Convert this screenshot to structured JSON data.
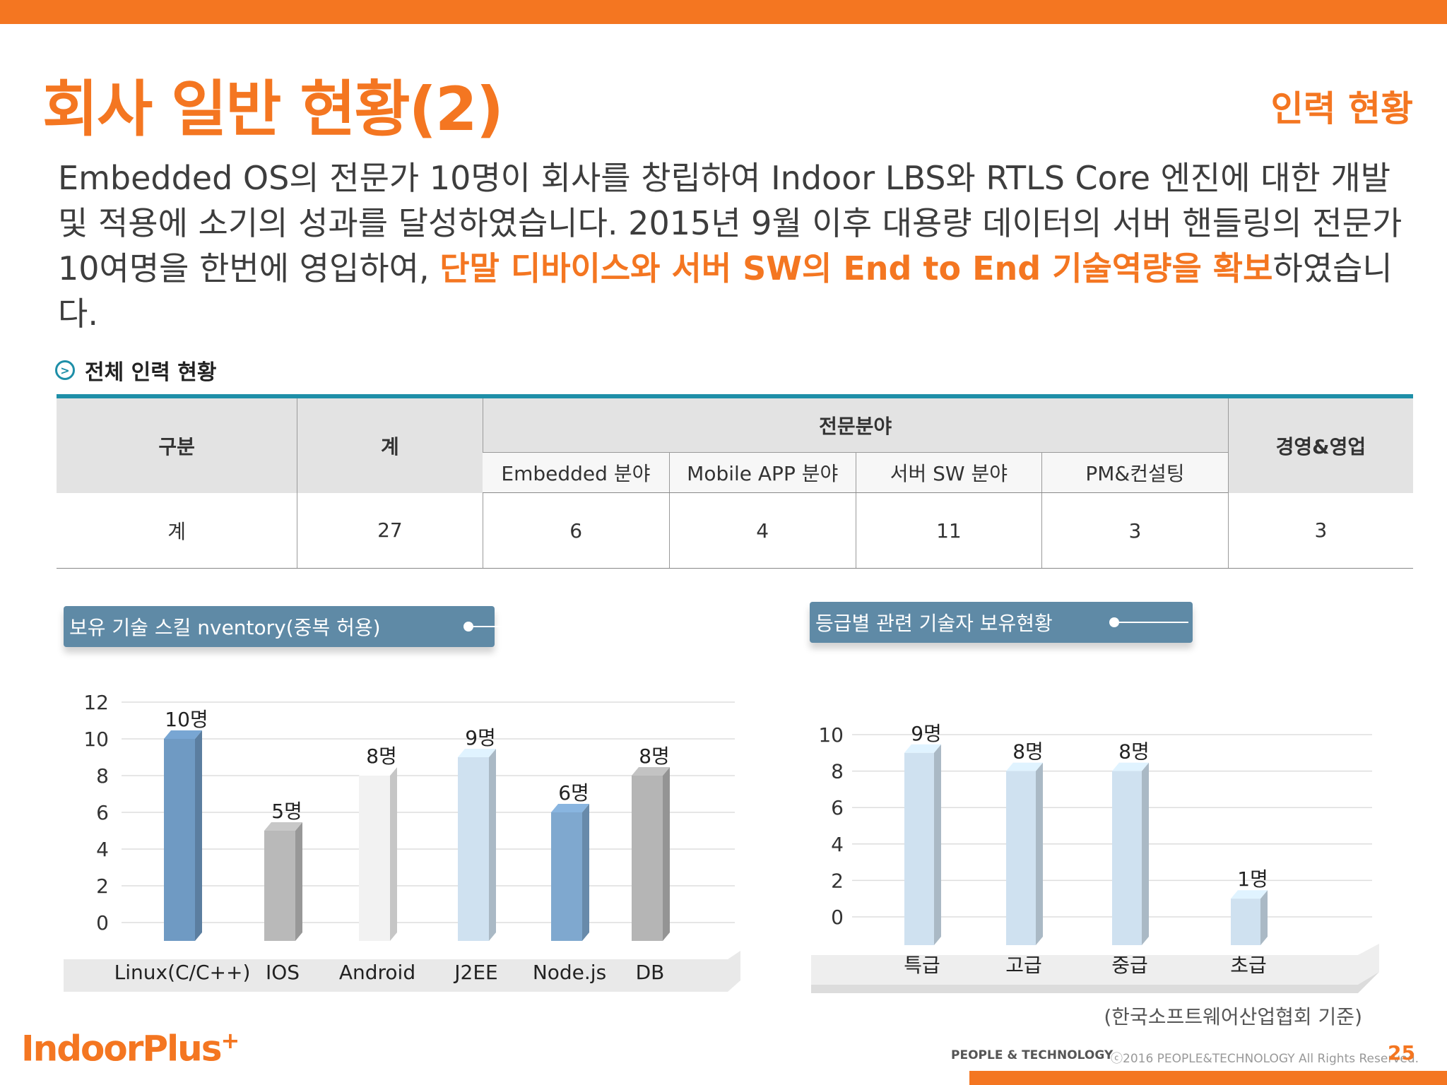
{
  "colors": {
    "accent": "#f47621",
    "teal": "#1e8fa8",
    "pill": "#5f8aa6"
  },
  "header": {
    "title": "회사 일반 현황(2)",
    "subtitle": "인력  현황"
  },
  "intro": {
    "text1": "Embedded OS의 전문가 10명이 회사를 창립하여 Indoor LBS와 RTLS Core 엔진에 대한 개발 및 적용에 소기의 성과를 달성하였습니다. 2015년 9월 이후 대용량 데이터의 서버 핸들링의 전문가 10여명을 한번에 영입하여, ",
    "highlight": "단말 디바이스와 서버 SW의 End to End 기술역량을 확보",
    "text2": "하였습니다."
  },
  "section": {
    "title": "전체 인력 현황",
    "icon": "chevron-right-circle-icon"
  },
  "staff_table": {
    "col_category": "구분",
    "col_total": "계",
    "group_specialty": "전문분야",
    "sub_cols": [
      "Embedded 분야",
      "Mobile APP 분야",
      "서버 SW 분야",
      "PM&컨설팅"
    ],
    "col_mgmt": "경영&영업",
    "row": {
      "label": "계",
      "total": "27",
      "values": [
        "6",
        "4",
        "11",
        "3"
      ],
      "mgmt": "3"
    }
  },
  "skill_chart": {
    "pill_label": "보유 기술  스킬 nventory(중복 허용)"
  },
  "grade_chart": {
    "pill_label": "등급별 관련 기술자 보유현황"
  },
  "footnote": "(한국소프트웨어산업협회 기준)",
  "footer": {
    "logo": "IndoorPlus",
    "logo_sup": "+",
    "tagline": "PEOPLE & TECHNOLOGY",
    "copyright": "ⓒ2016 PEOPLE&TECHNOLOGY  All Rights Reserved.",
    "page_number": "25"
  },
  "chart_data": [
    {
      "type": "bar",
      "title": "보유 기술  스킬 nventory(중복 허용)",
      "categories": [
        "Linux(C/C++)",
        "IOS",
        "Android",
        "J2EE",
        "Node.js",
        "DB"
      ],
      "values": [
        10,
        5,
        8,
        9,
        6,
        8
      ],
      "data_labels": [
        "10명",
        "5명",
        "8명",
        "9명",
        "6명",
        "8명"
      ],
      "bar_colors": [
        "#6f9ac3",
        "#b9b9b9",
        "#f2f2f2",
        "#cfe1f0",
        "#7fa8cf",
        "#b5b5b5"
      ],
      "yticks": [
        "12",
        "10",
        "8",
        "6",
        "4",
        "2",
        "0"
      ],
      "ylim": [
        0,
        12
      ],
      "grid": true
    },
    {
      "type": "bar",
      "title": "등급별 관련 기술자 보유현황",
      "categories": [
        "특급",
        "고급",
        "중급",
        "초급"
      ],
      "values": [
        9,
        8,
        8,
        1
      ],
      "data_labels": [
        "9명",
        "8명",
        "8명",
        "1명"
      ],
      "bar_colors": [
        "#cfe1f0",
        "#cfe1f0",
        "#cfe1f0",
        "#cfe1f0"
      ],
      "yticks": [
        "10",
        "8",
        "6",
        "4",
        "2",
        "0"
      ],
      "ylim": [
        0,
        10
      ],
      "grid": true
    }
  ]
}
